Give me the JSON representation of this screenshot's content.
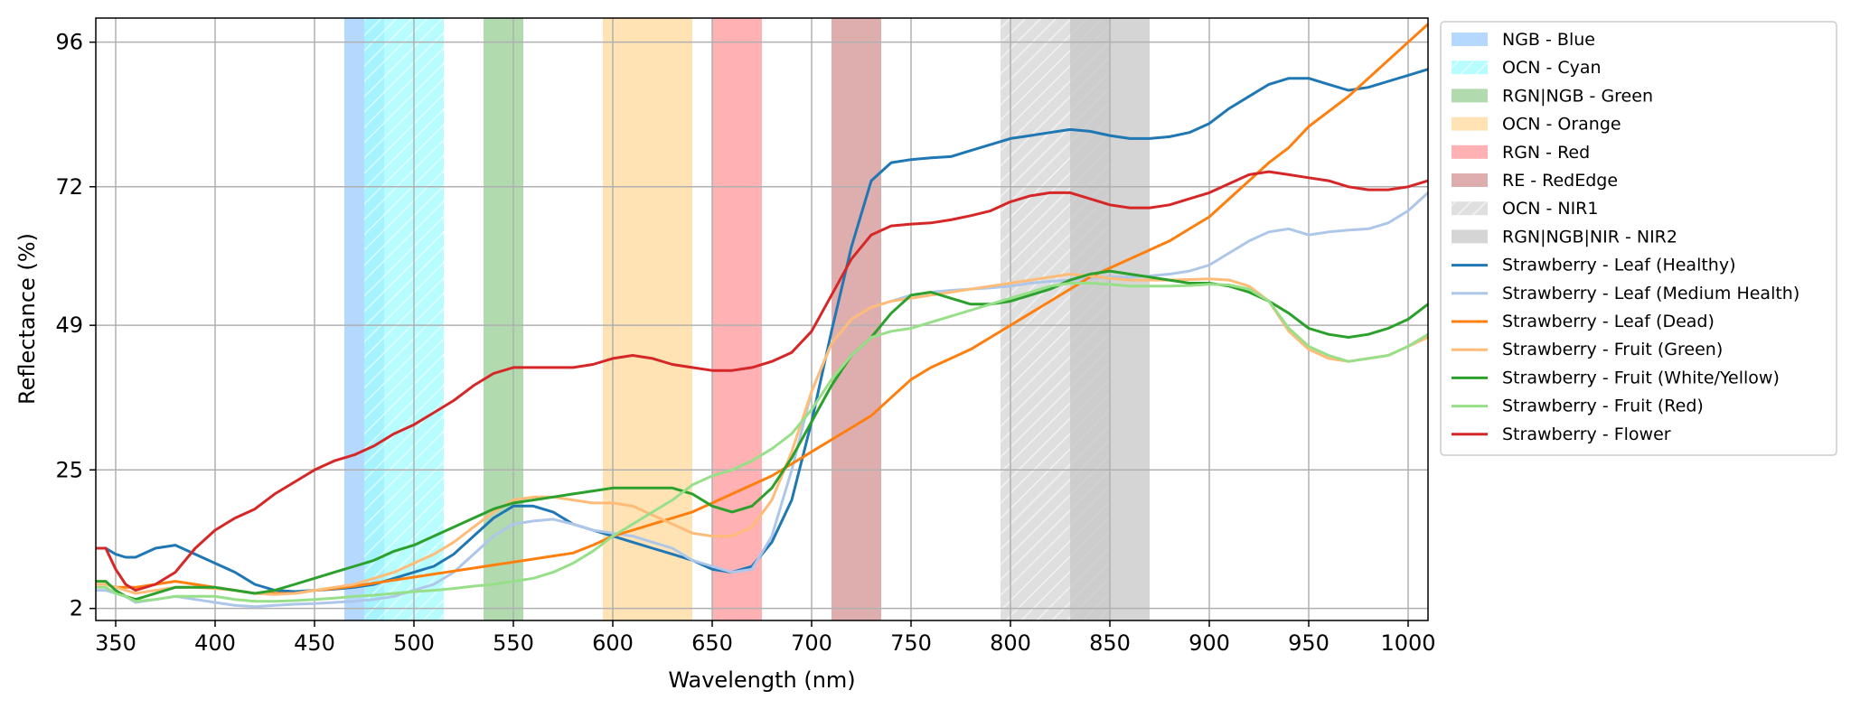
{
  "chart_data": {
    "type": "line",
    "xlabel": "Wavelength (nm)",
    "ylabel": "Reflectance (%)",
    "xlim": [
      340,
      1010
    ],
    "ylim": [
      0,
      100
    ],
    "xticks": [
      350,
      400,
      450,
      500,
      550,
      600,
      650,
      700,
      750,
      800,
      850,
      900,
      950,
      1000
    ],
    "yticks": [
      2,
      25,
      49,
      72,
      96
    ],
    "grid": true,
    "legend_position": "outside-right-top",
    "bands": [
      {
        "name": "NGB - Blue",
        "range": [
          465,
          485
        ],
        "color": "#a8d1ff",
        "alpha": 0.85,
        "hatch": false
      },
      {
        "name": "OCN - Cyan",
        "range": [
          475,
          515
        ],
        "color": "#9ffcff",
        "alpha": 0.75,
        "hatch": true
      },
      {
        "name": "RGN|NGB - Green",
        "range": [
          535,
          555
        ],
        "color": "#a9d6a6",
        "alpha": 0.9,
        "hatch": false
      },
      {
        "name": "OCN - Orange",
        "range": [
          595,
          640
        ],
        "color": "#ffe0ad",
        "alpha": 0.9,
        "hatch": false
      },
      {
        "name": "RGN - Red",
        "range": [
          650,
          675
        ],
        "color": "#ffadaf",
        "alpha": 0.95,
        "hatch": false
      },
      {
        "name": "RE - RedEdge",
        "range": [
          710,
          735
        ],
        "color": "#dcaaab",
        "alpha": 0.95,
        "hatch": false
      },
      {
        "name": "OCN - NIR1",
        "range": [
          795,
          850
        ],
        "color": "#d9d9d9",
        "alpha": 0.85,
        "hatch": true
      },
      {
        "name": "RGN|NGB|NIR - NIR2",
        "range": [
          830,
          870
        ],
        "color": "#c7c7c7",
        "alpha": 0.75,
        "hatch": false
      }
    ],
    "x": [
      340,
      345,
      350,
      355,
      360,
      370,
      380,
      390,
      400,
      410,
      420,
      430,
      440,
      450,
      460,
      470,
      480,
      490,
      500,
      510,
      520,
      530,
      540,
      550,
      560,
      570,
      580,
      590,
      600,
      610,
      620,
      630,
      640,
      650,
      660,
      670,
      680,
      690,
      700,
      710,
      720,
      730,
      740,
      750,
      760,
      770,
      780,
      790,
      800,
      810,
      820,
      830,
      840,
      850,
      860,
      870,
      880,
      890,
      900,
      910,
      920,
      930,
      940,
      950,
      960,
      970,
      980,
      990,
      1000,
      1010
    ],
    "series": [
      {
        "name": "Strawberry - Leaf (Healthy)",
        "color": "#1f77b4",
        "values": [
          12,
          12,
          11,
          10.5,
          10.5,
          12,
          12.5,
          11,
          9.5,
          8,
          6,
          5,
          4.8,
          5,
          5.2,
          5.5,
          6,
          7,
          8,
          9,
          11,
          14,
          17,
          19,
          19,
          18,
          16,
          15,
          14,
          13,
          12,
          11,
          10,
          8.5,
          8,
          9,
          13,
          20,
          33,
          48,
          62,
          73,
          76,
          76.5,
          76.8,
          77,
          78,
          79,
          80,
          80.5,
          81,
          81.5,
          81.2,
          80.5,
          80,
          80,
          80.3,
          81,
          82.5,
          85,
          87,
          89,
          90,
          90,
          89,
          88,
          88.5,
          89.5,
          90.5,
          91.5
        ]
      },
      {
        "name": "Strawberry - Leaf (Medium Health)",
        "color": "#aec7e8",
        "values": [
          5,
          5,
          4.5,
          4,
          3,
          3.5,
          4,
          3.5,
          3,
          2.5,
          2.3,
          2.5,
          2.7,
          2.8,
          3,
          3.2,
          3.5,
          4,
          5,
          6,
          8,
          11,
          14,
          16,
          16.5,
          16.8,
          16,
          15,
          14.5,
          14,
          13,
          12,
          10,
          9,
          8,
          8.5,
          14,
          25,
          38,
          46,
          50,
          52,
          53,
          54,
          54.5,
          54.8,
          55,
          55.2,
          55.5,
          56,
          56.3,
          56.5,
          56.8,
          57,
          57,
          57.2,
          57.5,
          58,
          59,
          61,
          63,
          64.5,
          65,
          64,
          64.5,
          64.8,
          65,
          66,
          68,
          71
        ]
      },
      {
        "name": "Strawberry  - Leaf (Dead)",
        "color": "#ff7f0e",
        "values": [
          6,
          6,
          5.5,
          5.5,
          5.5,
          6,
          6.5,
          6,
          5.5,
          5,
          4.5,
          4.5,
          4.5,
          5,
          5.3,
          5.7,
          6.2,
          6.7,
          7.2,
          7.7,
          8.2,
          8.7,
          9.2,
          9.7,
          10.2,
          10.7,
          11.2,
          12.5,
          14,
          15,
          16,
          17,
          18,
          19.5,
          21,
          22.5,
          24,
          26,
          28,
          30,
          32,
          34,
          37,
          40,
          42,
          43.5,
          45,
          47,
          49,
          51,
          53,
          55,
          57,
          58.5,
          60,
          61.5,
          63,
          65,
          67,
          70,
          73,
          76,
          78.5,
          82,
          84.5,
          87,
          90,
          93,
          96,
          99
        ]
      },
      {
        "name": "Strawberry - Fruit (Green)",
        "color": "#ffbb78",
        "values": [
          6,
          6,
          5.5,
          5,
          4.5,
          5,
          5.5,
          5.5,
          5.3,
          5,
          4.5,
          4.3,
          4.5,
          5,
          5.5,
          6,
          7,
          8,
          9.5,
          11,
          13,
          15.5,
          18,
          20,
          20.5,
          20.5,
          20,
          19.5,
          19.5,
          19,
          17.5,
          16,
          14.5,
          14,
          14,
          15.5,
          20,
          28,
          38,
          46,
          50,
          52,
          53,
          53.5,
          54,
          54.5,
          55,
          55.5,
          56,
          56.5,
          57,
          57.5,
          57.2,
          56.8,
          56.5,
          56.5,
          56.5,
          56.6,
          56.7,
          56.5,
          55.5,
          53,
          48,
          45,
          43.5,
          43,
          43.5,
          44,
          45.5,
          47
        ]
      },
      {
        "name": "Strawberry - Fruit (White/Yellow)",
        "color": "#2ca02c",
        "values": [
          6.5,
          6.5,
          5,
          4,
          3.5,
          4.5,
          5.5,
          5.5,
          5.5,
          5,
          4.5,
          5,
          6,
          7,
          8,
          9,
          10,
          11.5,
          12.5,
          14,
          15.5,
          17,
          18.5,
          19.5,
          20,
          20.5,
          21,
          21.5,
          22,
          22,
          22,
          22,
          21,
          19,
          18,
          19,
          22,
          27,
          33,
          39,
          44,
          47,
          51,
          54,
          54.5,
          53.5,
          52.5,
          52.5,
          53,
          54,
          55,
          56.5,
          57.5,
          58,
          57.5,
          57,
          56.5,
          56,
          56,
          55.5,
          54.5,
          53,
          51,
          48.5,
          47.5,
          47,
          47.5,
          48.5,
          50,
          52.5
        ]
      },
      {
        "name": "Strawberry - Fruit (Red)",
        "color": "#98df8a",
        "values": [
          5.5,
          5.5,
          4.5,
          4,
          3.2,
          3.5,
          4,
          4,
          4,
          3.5,
          3.2,
          3.2,
          3.3,
          3.5,
          3.7,
          4,
          4.2,
          4.5,
          4.8,
          5,
          5.3,
          5.7,
          6,
          6.5,
          7,
          8,
          9.5,
          11.5,
          14,
          16,
          18,
          20,
          22.5,
          24,
          25,
          26.5,
          28.5,
          31,
          35,
          40,
          44,
          47,
          48,
          48.5,
          49.5,
          50.5,
          51.5,
          52.5,
          53.5,
          54.5,
          55.5,
          56,
          56,
          55.8,
          55.5,
          55.5,
          55.5,
          55.6,
          55.8,
          55.7,
          55,
          53,
          48.5,
          45.5,
          44,
          43,
          43.5,
          44,
          45.5,
          47.5
        ]
      },
      {
        "name": "Strawberry - Flower",
        "color": "#d62728",
        "values": [
          12,
          12,
          8.5,
          6,
          5,
          6,
          8,
          12,
          15,
          17,
          18.5,
          21,
          23,
          25,
          26.5,
          27.5,
          29,
          31,
          32.5,
          34.5,
          36.5,
          39,
          41,
          42,
          42,
          42,
          42,
          42.5,
          43.5,
          44,
          43.5,
          42.5,
          42,
          41.5,
          41.5,
          42,
          43,
          44.5,
          48,
          54,
          60,
          64,
          65.5,
          65.8,
          66,
          66.5,
          67.2,
          68,
          69.5,
          70.5,
          71,
          71,
          70,
          69,
          68.5,
          68.5,
          69,
          70,
          71,
          72.5,
          74,
          74.5,
          74,
          73.5,
          73,
          72,
          71.5,
          71.5,
          72,
          73
        ]
      }
    ]
  }
}
